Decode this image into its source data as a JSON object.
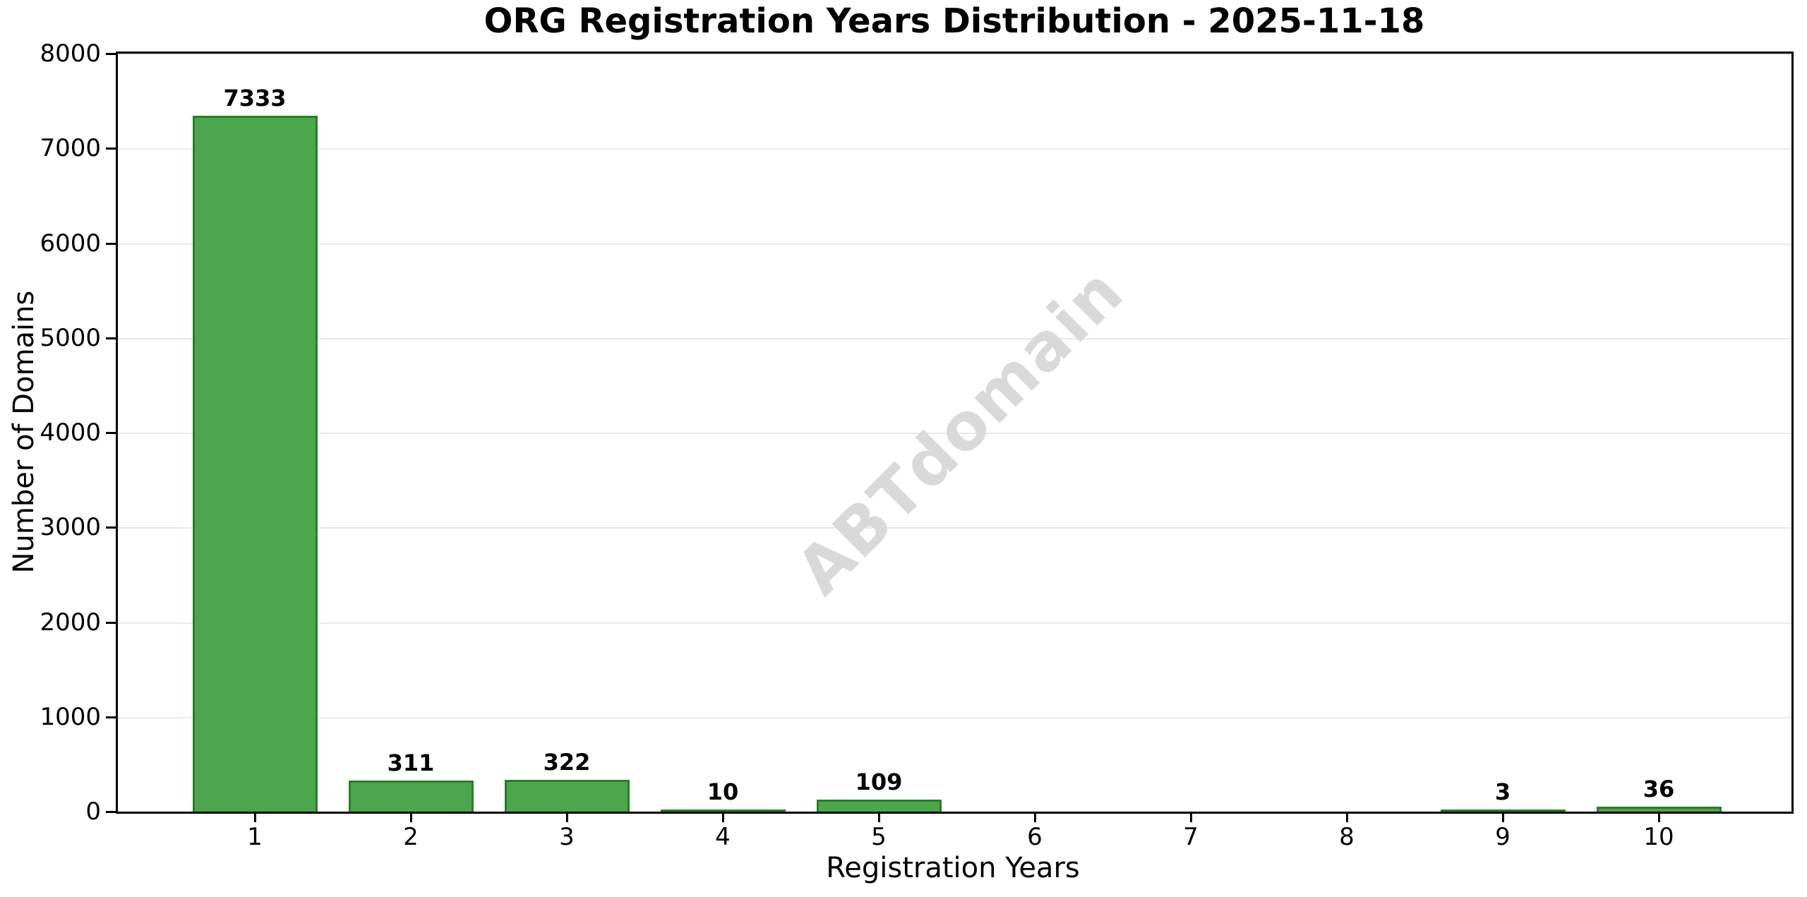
{
  "chart_data": {
    "type": "bar",
    "title": "ORG Registration Years Distribution - 2025-11-18",
    "xlabel": "Registration Years",
    "ylabel": "Number of Domains",
    "categories": [
      "1",
      "2",
      "3",
      "4",
      "5",
      "6",
      "7",
      "8",
      "9",
      "10"
    ],
    "values": [
      7333,
      311,
      322,
      10,
      109,
      0,
      0,
      0,
      3,
      36
    ],
    "bar_labels": [
      "7333",
      "311",
      "322",
      "10",
      "109",
      "",
      "",
      "",
      "3",
      "36"
    ],
    "ylim": [
      0,
      8000
    ],
    "yticks": [
      0,
      1000,
      2000,
      3000,
      4000,
      5000,
      6000,
      7000,
      8000
    ],
    "grid": "horizontal",
    "legend": "none",
    "watermark": "ABTdomain",
    "colors": {
      "bar_fill": "#4CA64C",
      "bar_edge": "#2B7D2B",
      "grid": "#e8e8e8",
      "spine": "#000000",
      "watermark": "#d9d9d9",
      "text": "#000000"
    }
  }
}
